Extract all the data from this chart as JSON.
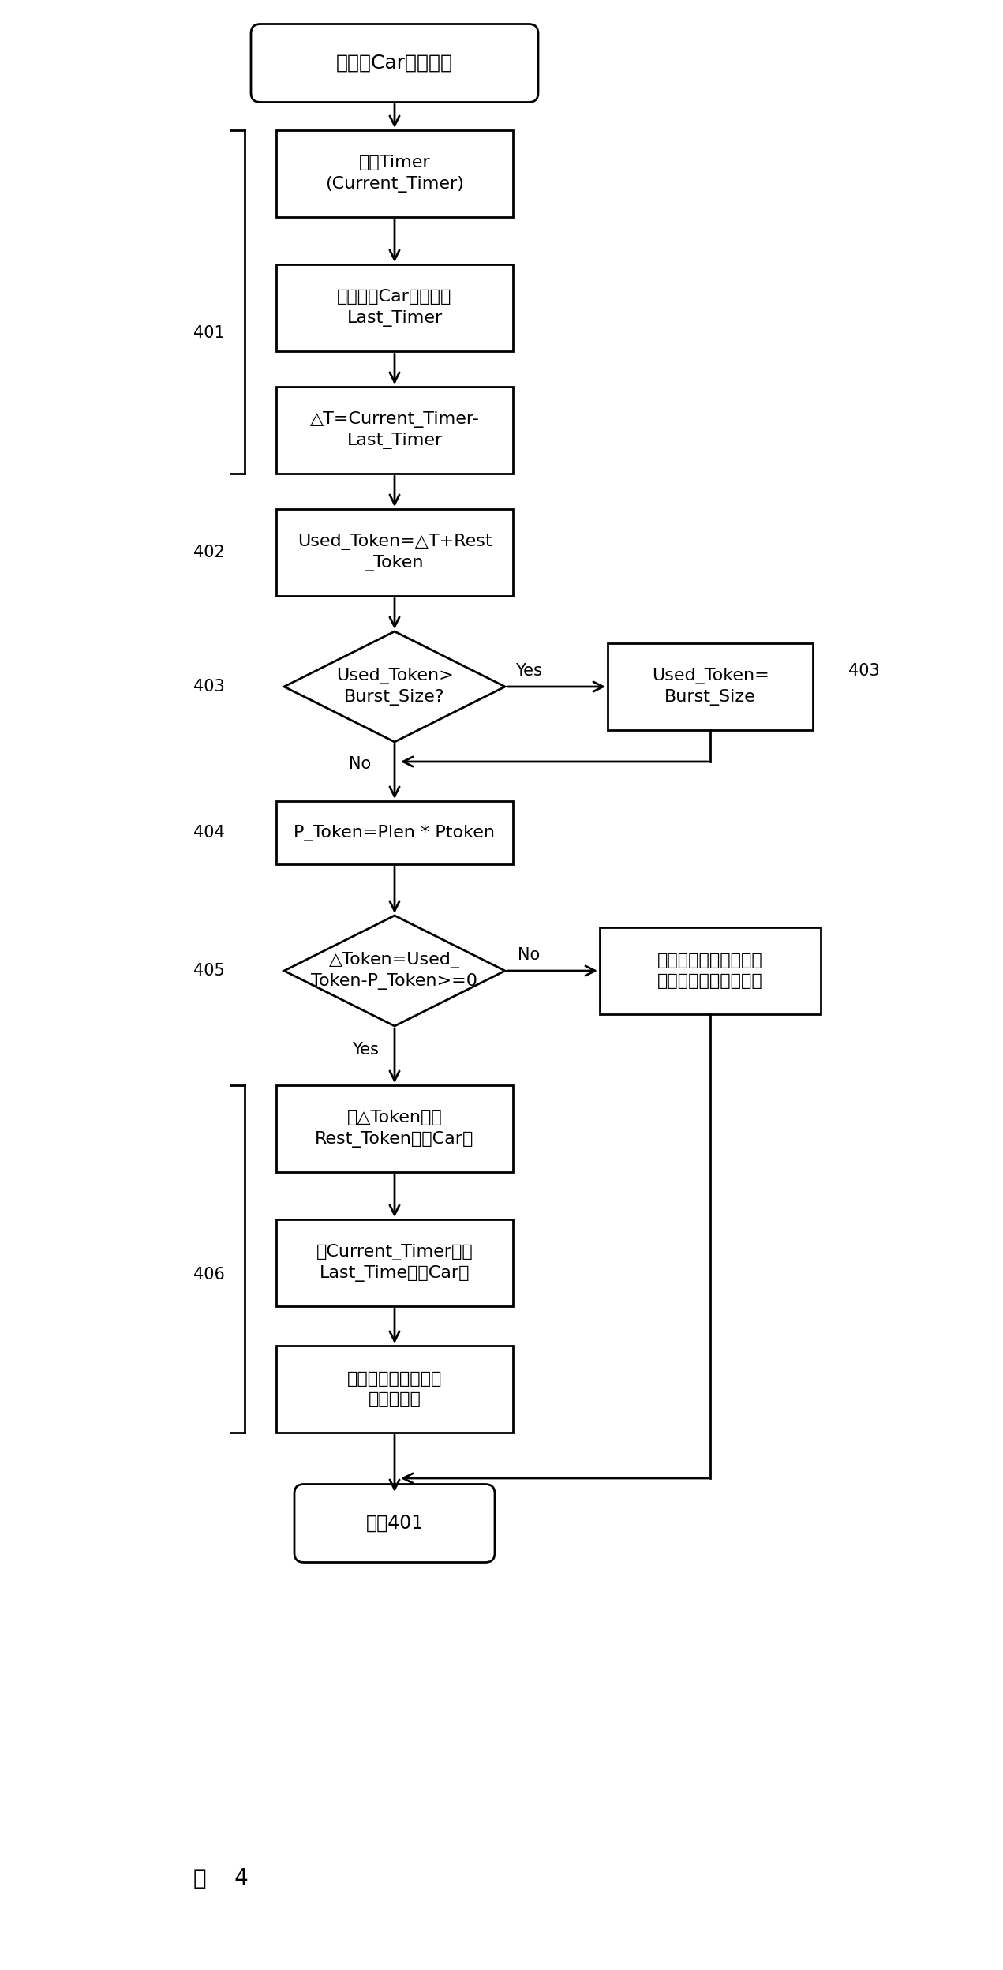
{
  "title_text": "入端口Car处理流程",
  "box1_text": "读取Timer\n(Current_Timer)",
  "box2_text": "从入端口Car表中读取\nLast_Timer",
  "box3_text": "△T=Current_Timer-\nLast_Timer",
  "box4_text": "Used_Token=△T+Rest\n_Token",
  "d1_text": "Used_Token>\nBurst_Size?",
  "box5_text": "Used_Token=\nBurst_Size",
  "box6_text": "P_Token=Plen * Ptoken",
  "d2_text": "△Token=Used_\nToken-P_Token>=0",
  "box7_text": "令牌数不够，报文前面\n加上额外带宽标记转发",
  "box8_text": "将△Token作为\nRest_Token存入Car表",
  "box9_text": "将Current_Timer作为\nLast_Time存入Car表",
  "box10_text": "报文前面加上基本带\n宽标记转发",
  "end_text": "返回401",
  "label_401": "401",
  "label_402": "402",
  "label_403a": "403",
  "label_403b": "403",
  "label_404": "404",
  "label_405": "405",
  "label_406": "406",
  "yes1": "Yes",
  "no1": "No",
  "yes2": "Yes",
  "no2": "No",
  "fig_label": "图    4",
  "bg": "#ffffff",
  "fc": "#ffffff",
  "ec": "#000000",
  "tc": "#000000"
}
